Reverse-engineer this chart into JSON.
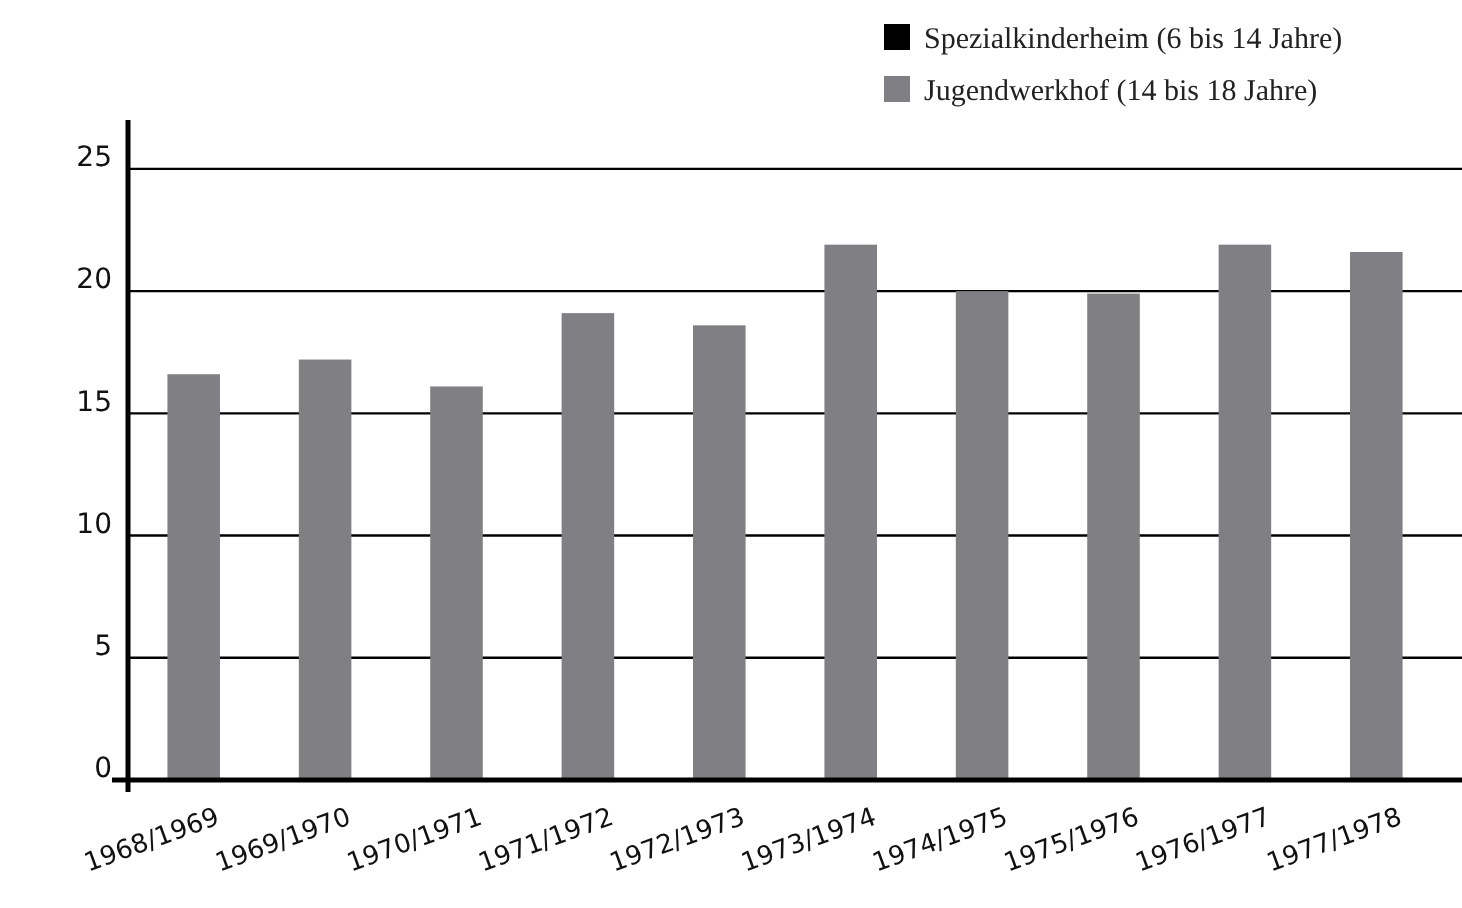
{
  "chart_data": {
    "type": "bar",
    "categories": [
      "1968/1969",
      "1969/1970",
      "1970/1971",
      "1971/1972",
      "1972/1973",
      "1973/1974",
      "1974/1975",
      "1975/1976",
      "1976/1977",
      "1977/1978"
    ],
    "series": [
      {
        "name": "Spezialkinderheim (6 bis 14 Jahre)",
        "color": "#000000",
        "values": [
          null,
          null,
          null,
          null,
          null,
          null,
          null,
          null,
          null,
          null
        ]
      },
      {
        "name": "Jugendwerkhof (14 bis 18 Jahre)",
        "color": "#808084",
        "values": [
          16.6,
          17.2,
          16.1,
          19.1,
          18.6,
          21.9,
          20,
          19.9,
          21.9,
          21.6
        ]
      }
    ],
    "ylim": [
      0,
      27
    ],
    "yticks": [
      0,
      5,
      10,
      15,
      20,
      25
    ],
    "grid": "y",
    "legend": "top right"
  }
}
